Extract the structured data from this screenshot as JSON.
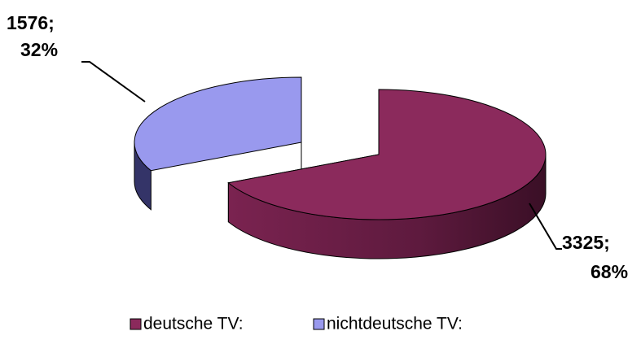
{
  "chart_data": {
    "type": "pie3d",
    "categories": [
      "deutsche TV:",
      "nichtdeutsche TV:"
    ],
    "values": [
      3325,
      1576
    ],
    "value_labels": [
      [
        "3325;",
        "68%"
      ],
      [
        "1576;",
        "32%"
      ]
    ],
    "colors": [
      "#8b2a5c",
      "#9999ee"
    ],
    "legend": "bottom"
  }
}
